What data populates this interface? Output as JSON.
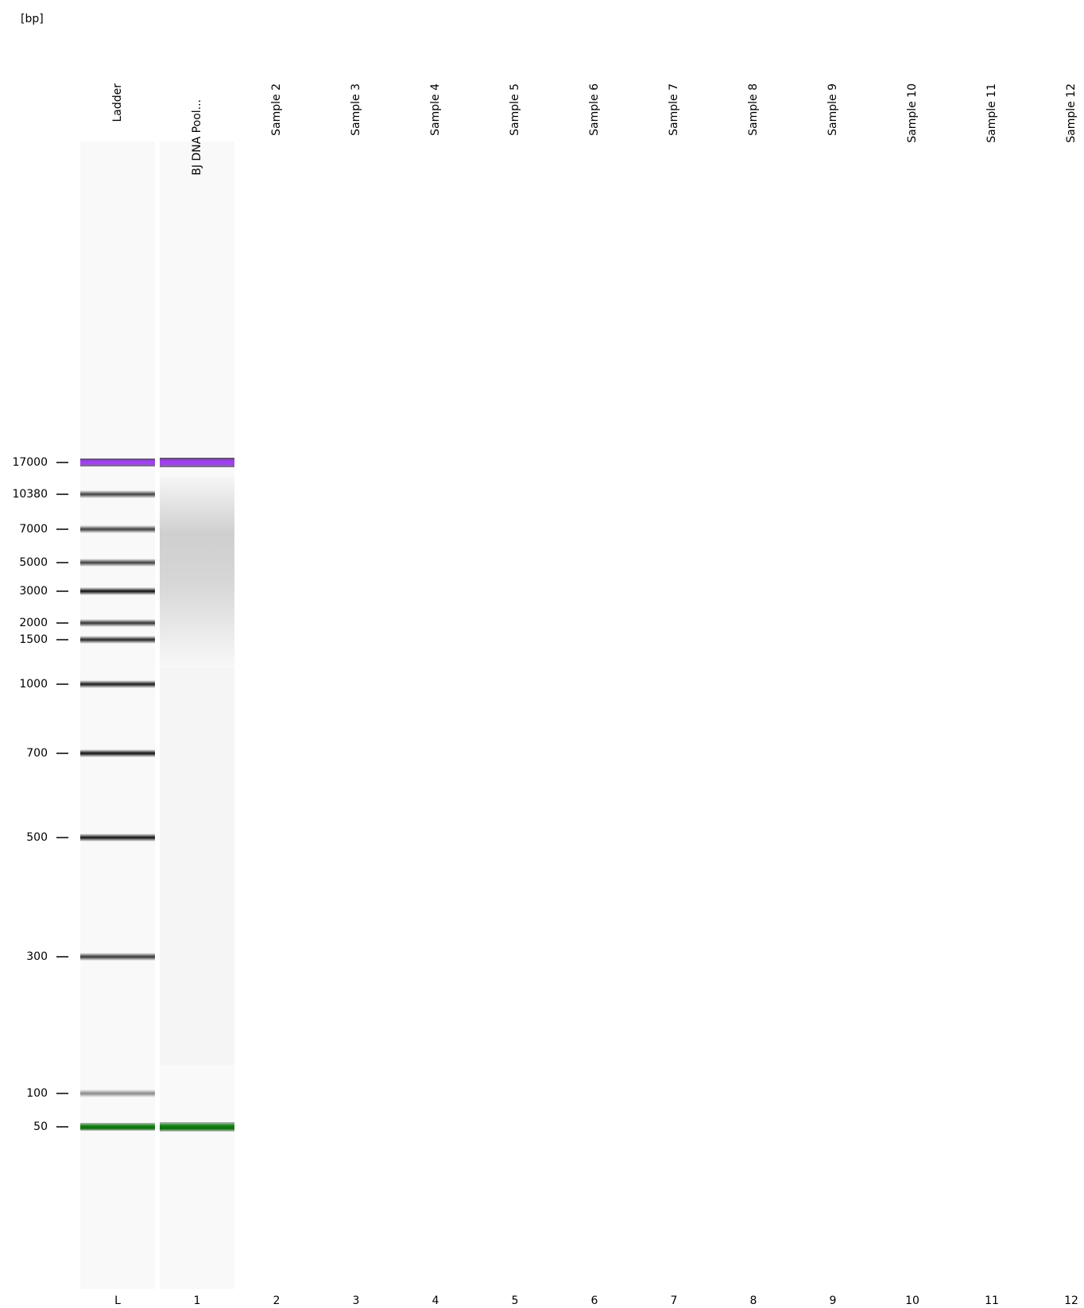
{
  "unit_label": "[bp]",
  "lanes": [
    {
      "name": "Ladder",
      "id": "L"
    },
    {
      "name": "BJ DNA Pool...",
      "id": "1"
    },
    {
      "name": "Sample 2",
      "id": "2"
    },
    {
      "name": "Sample 3",
      "id": "3"
    },
    {
      "name": "Sample 4",
      "id": "4"
    },
    {
      "name": "Sample 5",
      "id": "5"
    },
    {
      "name": "Sample 6",
      "id": "6"
    },
    {
      "name": "Sample 7",
      "id": "7"
    },
    {
      "name": "Sample 8",
      "id": "8"
    },
    {
      "name": "Sample 9",
      "id": "9"
    },
    {
      "name": "Sample 10",
      "id": "10"
    },
    {
      "name": "Sample 11",
      "id": "11"
    },
    {
      "name": "Sample 12",
      "id": "12"
    }
  ],
  "size_markers": [
    17000,
    10380,
    7000,
    5000,
    3000,
    2000,
    1500,
    1000,
    700,
    500,
    300,
    100,
    50
  ]
}
